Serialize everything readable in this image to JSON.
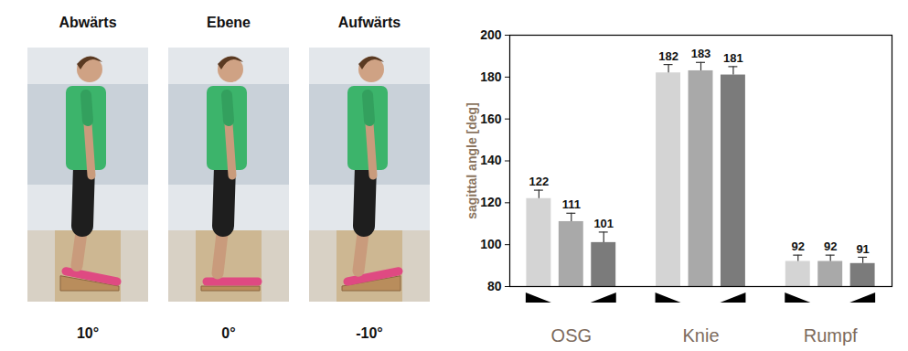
{
  "panels": [
    {
      "label": "Abwärts",
      "angle": {
        "value": 10,
        "label": "10°"
      }
    },
    {
      "label": "Ebene",
      "angle": {
        "value": 0,
        "label": "0°"
      }
    },
    {
      "label": "Aufwärts",
      "angle": {
        "value": -10,
        "label": "-10°"
      }
    }
  ],
  "chart_data": {
    "type": "bar",
    "y_label": "sagittal angle [deg]",
    "categories": [
      "OSG",
      "Knie",
      "Rumpf"
    ],
    "ylim": [
      80,
      200
    ],
    "yticks": [
      80,
      100,
      120,
      140,
      160,
      180,
      200
    ],
    "grid": false,
    "data_labels": true,
    "series": [
      {
        "color": "#d4d4d4",
        "values": [
          122,
          182,
          92
        ],
        "errors": [
          4,
          4,
          3
        ]
      },
      {
        "color": "#a9a9a9",
        "values": [
          111,
          183,
          92
        ],
        "errors": [
          4,
          4,
          3
        ]
      },
      {
        "color": "#7b7b7b",
        "values": [
          101,
          181,
          91
        ],
        "errors": [
          5,
          4,
          3
        ]
      }
    ]
  }
}
